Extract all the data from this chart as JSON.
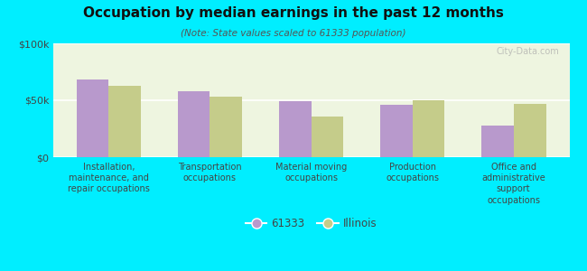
{
  "title": "Occupation by median earnings in the past 12 months",
  "subtitle": "(Note: State values scaled to 61333 population)",
  "background_outer": "#00eeff",
  "background_inner_color": "#eef5e0",
  "categories": [
    "Installation,\nmaintenance, and\nrepair occupations",
    "Transportation\noccupations",
    "Material moving\noccupations",
    "Production\noccupations",
    "Office and\nadministrative\nsupport\noccupations"
  ],
  "values_61333": [
    68000,
    58000,
    49000,
    46000,
    28000
  ],
  "values_illinois": [
    63000,
    53000,
    36000,
    50000,
    47000
  ],
  "color_61333": "#b899cc",
  "color_illinois": "#c5cc8a",
  "ylim": [
    0,
    100000
  ],
  "yticks": [
    0,
    50000,
    100000
  ],
  "ytick_labels": [
    "$0",
    "$50k",
    "$100k"
  ],
  "legend_label_1": "61333",
  "legend_label_2": "Illinois",
  "watermark": "City-Data.com"
}
